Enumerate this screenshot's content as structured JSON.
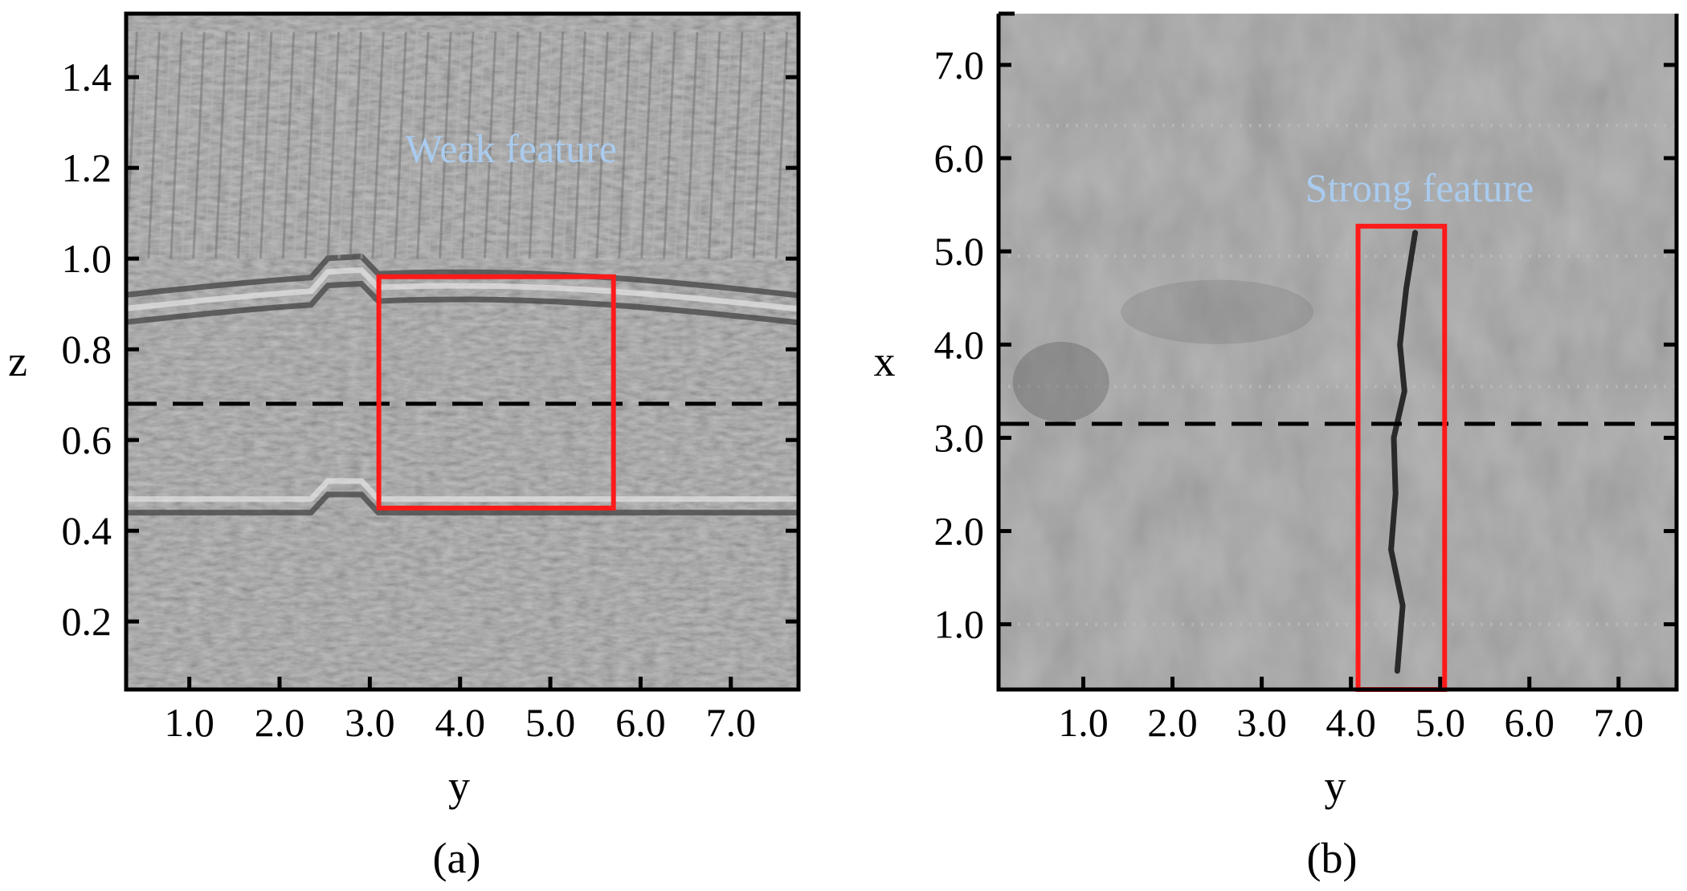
{
  "chart_data": [
    {
      "type": "heatmap",
      "panel_label": "(a)",
      "xlabel": "y",
      "ylabel": "z",
      "xlim": [
        0.3,
        7.75
      ],
      "ylim": [
        1.54,
        0.05
      ],
      "x_ticks": [
        "1.0",
        "2.0",
        "3.0",
        "4.0",
        "5.0",
        "6.0",
        "7.0"
      ],
      "y_ticks": [
        "0.2",
        "0.4",
        "0.6",
        "0.8",
        "1.0",
        "1.2",
        "1.4"
      ],
      "dashed_line_value": 0.68,
      "box": {
        "y_range": [
          3.1,
          5.7
        ],
        "value_range": [
          0.45,
          0.96
        ]
      },
      "annotation": "Weak feature",
      "colormap": "gray"
    },
    {
      "type": "heatmap",
      "panel_label": "(b)",
      "xlabel": "y",
      "ylabel": "x",
      "xlim": [
        0.05,
        7.65
      ],
      "ylim": [
        0.3,
        7.55
      ],
      "x_ticks": [
        "1.0",
        "2.0",
        "3.0",
        "4.0",
        "5.0",
        "6.0",
        "7.0"
      ],
      "y_ticks": [
        "1.0",
        "2.0",
        "3.0",
        "4.0",
        "5.0",
        "6.0",
        "7.0"
      ],
      "dashed_line_value": 3.15,
      "box": {
        "y_range": [
          4.08,
          5.05
        ],
        "value_range": [
          0.3,
          5.27
        ]
      },
      "annotation": "Strong feature",
      "colormap": "gray"
    }
  ],
  "colors": {
    "box": "#ff1a1a",
    "annotation": "#a9cbee",
    "dashed": "#000000"
  }
}
